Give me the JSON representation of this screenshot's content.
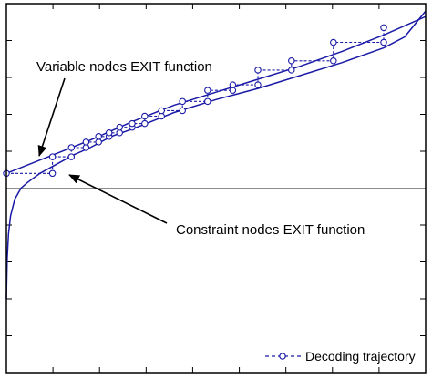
{
  "chart_data": {
    "type": "line",
    "title": "",
    "xlabel": "",
    "ylabel": "",
    "xlim": [
      0,
      1
    ],
    "ylim": [
      -1,
      1
    ],
    "grid": false,
    "x_ticks": [
      0,
      0.1111,
      0.2222,
      0.3333,
      0.4444,
      0.5556,
      0.6667,
      0.7778,
      0.8889,
      1
    ],
    "y_ticks": [
      -1,
      -0.8,
      -0.6,
      -0.4,
      -0.2,
      0,
      0.2,
      0.4,
      0.6,
      0.8,
      1
    ],
    "reference_lines": [
      {
        "axis": "y",
        "value": 0
      }
    ],
    "series": [
      {
        "role": "variable-nodes-exit",
        "color": "#1a1aa6",
        "x": [
          0,
          0.1,
          0.2,
          0.3,
          0.4,
          0.5,
          0.6,
          0.7,
          0.8,
          0.9,
          1.0
        ],
        "y": [
          0.08,
          0.17,
          0.26,
          0.36,
          0.45,
          0.52,
          0.59,
          0.66,
          0.74,
          0.83,
          0.93
        ]
      },
      {
        "role": "constraint-nodes-exit",
        "color": "#1a1aa6",
        "x": [
          0.0,
          0.002,
          0.005,
          0.01,
          0.02,
          0.035,
          0.05,
          0.08,
          0.12,
          0.16,
          0.2,
          0.25,
          0.3,
          0.4,
          0.5,
          0.6,
          0.7,
          0.8,
          0.9,
          0.95,
          1.0
        ],
        "y": [
          -0.6,
          -0.38,
          -0.25,
          -0.15,
          -0.06,
          0.0,
          0.03,
          0.08,
          0.13,
          0.18,
          0.22,
          0.28,
          0.32,
          0.41,
          0.48,
          0.54,
          0.61,
          0.68,
          0.76,
          0.82,
          0.96
        ]
      },
      {
        "name": "Decoding trajectory",
        "style": "dashed-with-circle-markers",
        "color": "#1a1aa6",
        "x": [
          0.0,
          0.11,
          0.11,
          0.155,
          0.155,
          0.19,
          0.19,
          0.22,
          0.22,
          0.245,
          0.245,
          0.27,
          0.27,
          0.3,
          0.3,
          0.33,
          0.33,
          0.37,
          0.37,
          0.42,
          0.42,
          0.48,
          0.48,
          0.54,
          0.54,
          0.6,
          0.6,
          0.68,
          0.68,
          0.78,
          0.78,
          0.9,
          0.9
        ],
        "y": [
          0.08,
          0.08,
          0.17,
          0.17,
          0.22,
          0.22,
          0.25,
          0.25,
          0.28,
          0.28,
          0.3,
          0.3,
          0.33,
          0.33,
          0.35,
          0.35,
          0.39,
          0.39,
          0.42,
          0.42,
          0.47,
          0.47,
          0.53,
          0.53,
          0.56,
          0.56,
          0.64,
          0.64,
          0.69,
          0.69,
          0.79,
          0.79,
          0.87
        ]
      }
    ],
    "annotations": [
      {
        "text": "Variable nodes EXIT function",
        "target_series": "variable-nodes-exit"
      },
      {
        "text": "Constraint nodes EXIT function",
        "target_series": "constraint-nodes-exit"
      }
    ],
    "legend": {
      "placement": "bottom-right",
      "entries": [
        "Decoding trajectory"
      ]
    }
  }
}
